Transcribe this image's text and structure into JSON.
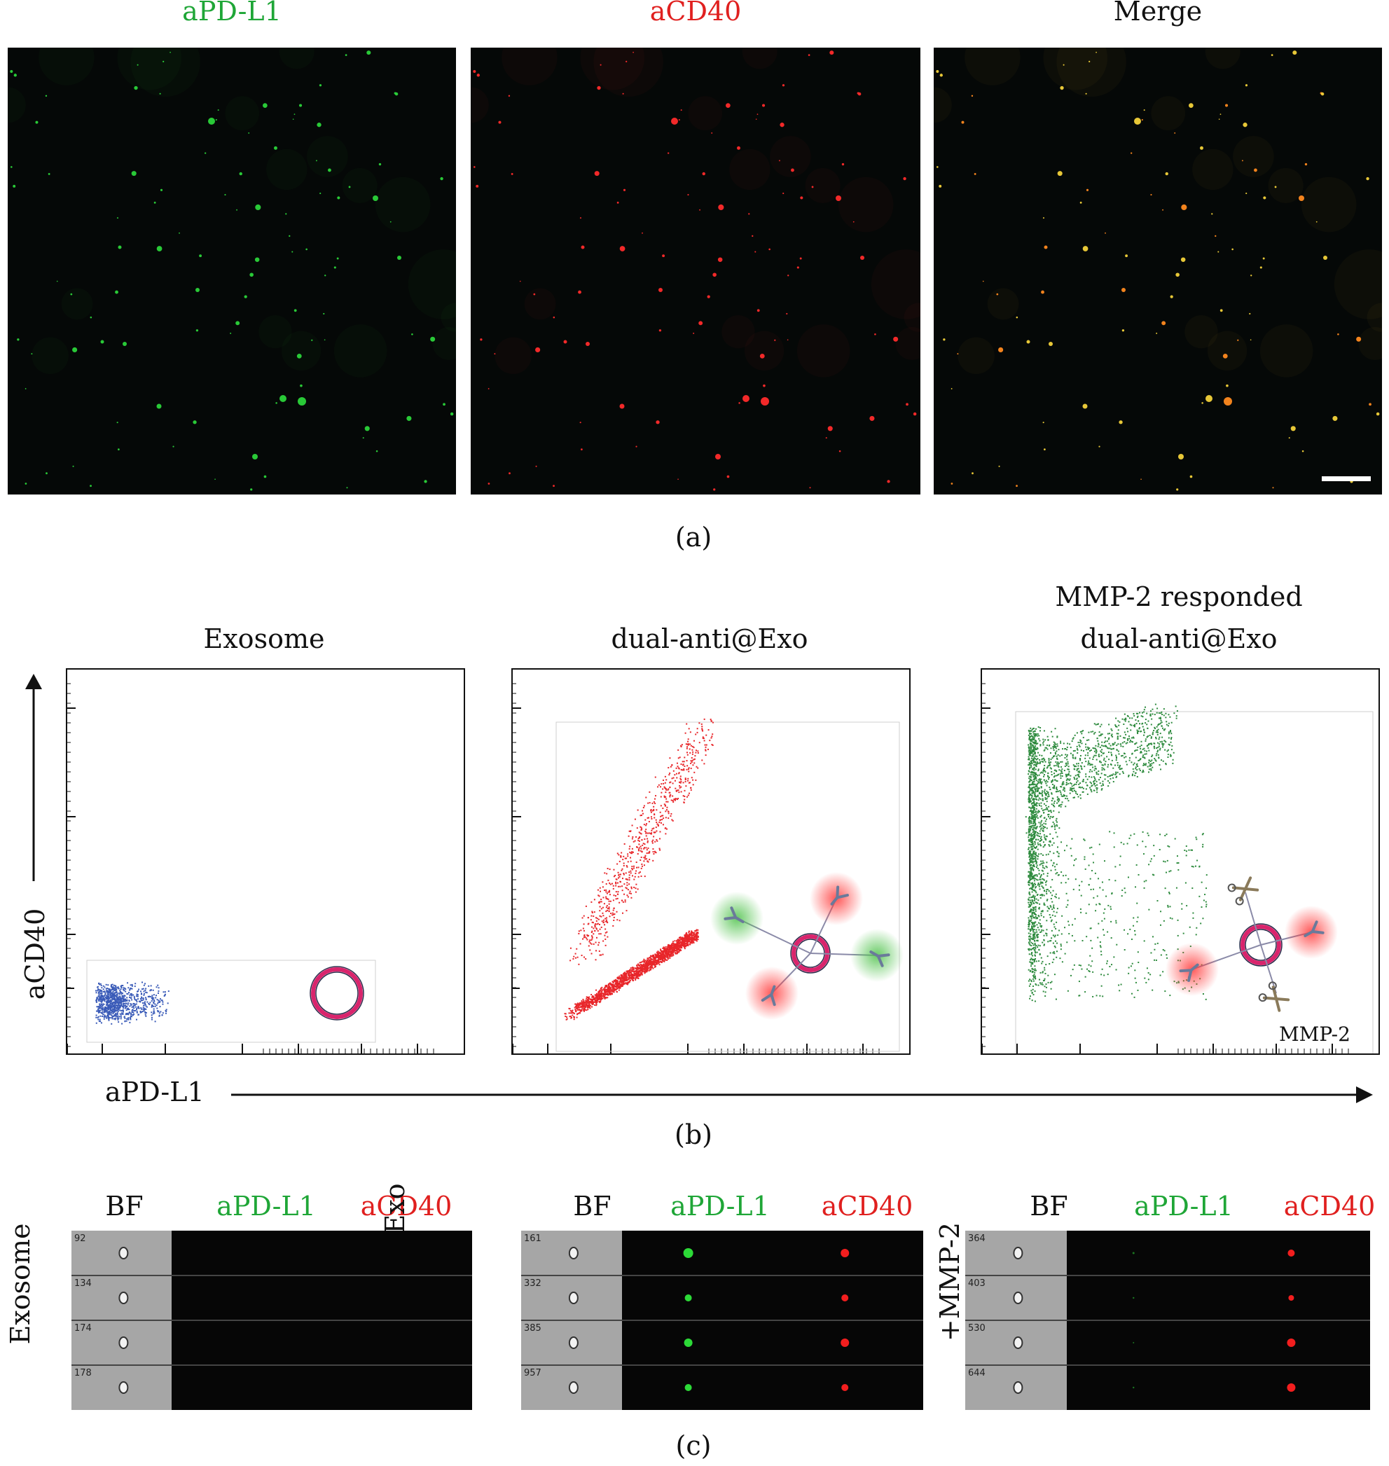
{
  "panel_a": {
    "caption": "(a)",
    "titles": [
      "aPD-L1",
      "aCD40",
      "Merge"
    ],
    "title_colors": [
      "#1fa637",
      "#e0201f",
      "#111111"
    ]
  },
  "panel_b": {
    "caption": "(b)",
    "titles": [
      "Exosome",
      "dual-anti@Exo",
      "MMP-2 responded dual-anti@Exo"
    ],
    "title_lines_3": [
      "MMP-2 responded",
      "dual-anti@Exo"
    ],
    "x_axis_label": "aPD-L1",
    "y_axis_label": "aCD40",
    "mmp2_label": "MMP-2",
    "dot_colors": [
      "#3a5bb8",
      "#e8262a",
      "#2e8b3e"
    ]
  },
  "panel_c": {
    "caption": "(c)",
    "column_headers": [
      "BF",
      "aPD-L1",
      "aCD40"
    ],
    "header_colors": [
      "#111111",
      "#1fa637",
      "#e0201f"
    ],
    "groups": [
      {
        "row_label": "Exosome",
        "cells": [
          "92",
          "134",
          "174",
          "178"
        ]
      },
      {
        "row_label": "dual-anti@Exo",
        "cells": [
          "161",
          "332",
          "385",
          "957"
        ]
      },
      {
        "row_label": "+MMP-2",
        "cells": [
          "364",
          "403",
          "530",
          "644"
        ]
      }
    ]
  }
}
